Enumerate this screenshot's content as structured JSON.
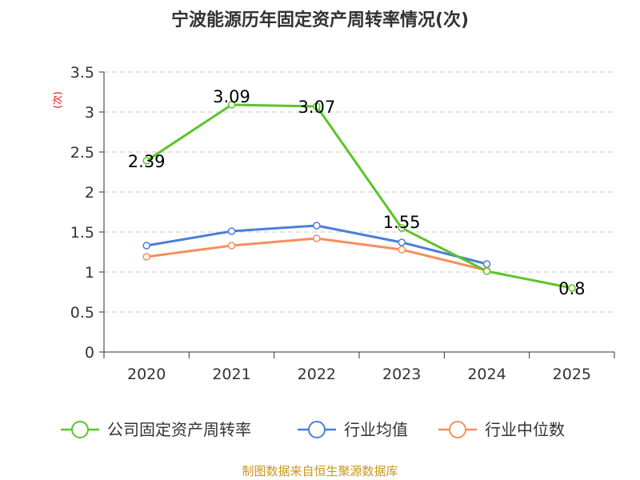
{
  "chart_data": {
    "type": "line",
    "title": "宁波能源历年固定资产周转率情况(次)",
    "ylabel": "(次)",
    "xlabel": "",
    "categories": [
      "2020",
      "2021",
      "2022",
      "2023",
      "2024",
      "2025"
    ],
    "ylim": [
      0,
      3.5
    ],
    "yticks": [
      0,
      0.5,
      1,
      1.5,
      2,
      2.5,
      3,
      3.5
    ],
    "ytick_labels": [
      "0",
      "0.5",
      "1",
      "1.5",
      "2",
      "2.5",
      "3",
      "3.5"
    ],
    "grid": true,
    "legend_position": "bottom",
    "series": [
      {
        "name": "公司固定资产周转率",
        "color": "#5cc42a",
        "values": [
          2.39,
          3.09,
          3.07,
          1.55,
          1.01,
          0.8
        ],
        "labels": [
          "2.39",
          "3.09",
          "3.07",
          "1.55",
          "",
          "0.8"
        ]
      },
      {
        "name": "行业均值",
        "color": "#4a7fd8",
        "values": [
          1.33,
          1.51,
          1.58,
          1.37,
          1.1,
          null
        ],
        "labels": []
      },
      {
        "name": "行业中位数",
        "color": "#f58f5c",
        "values": [
          1.19,
          1.33,
          1.42,
          1.28,
          1.02,
          null
        ],
        "labels": []
      }
    ],
    "source": "制图数据来自恒生聚源数据库"
  }
}
